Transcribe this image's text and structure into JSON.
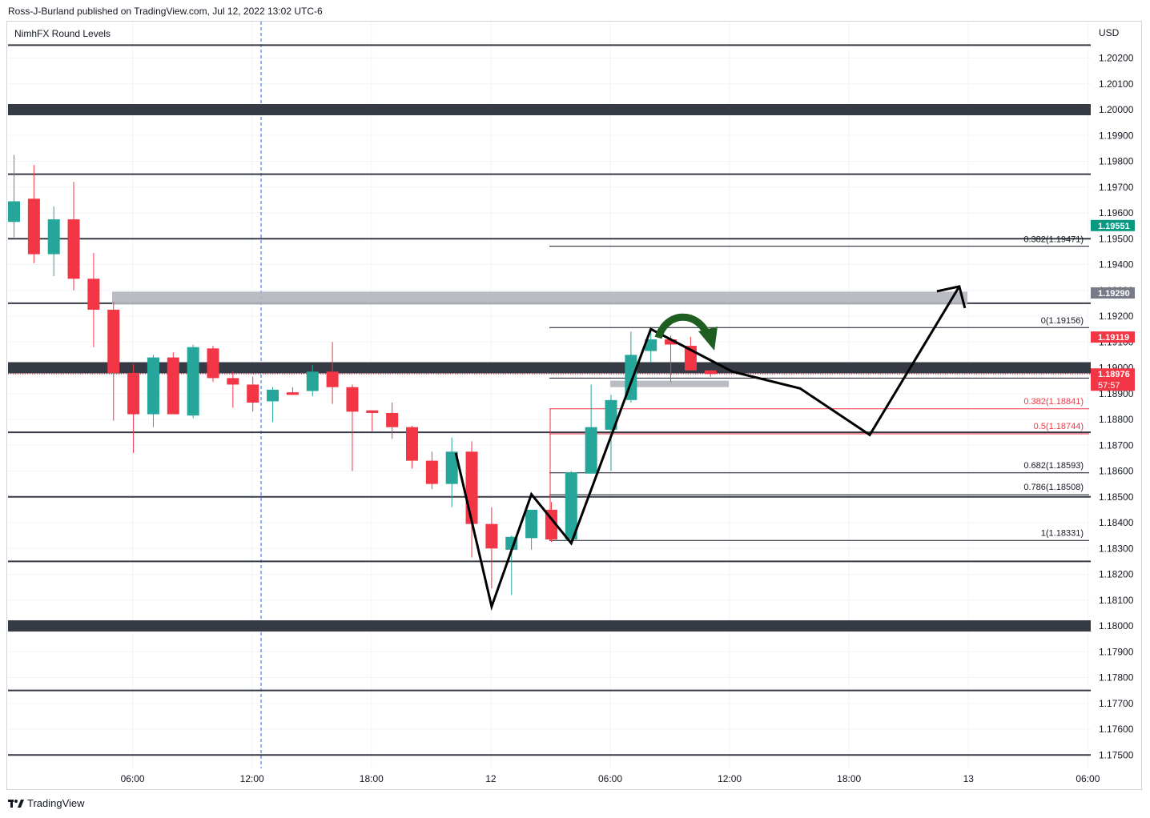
{
  "header": {
    "publisher": "Ross-J-Burland published on TradingView.com, Jul 12, 2022 13:02 UTC-6"
  },
  "indicator": {
    "name": "NimhFX Round Levels"
  },
  "currency": "USD",
  "footer": {
    "brand": "TradingView"
  },
  "colors": {
    "up": "#26a69a",
    "upAlt": "#089981",
    "down": "#f23645",
    "level": "#363a45",
    "zone": "#b2b5be",
    "arrow": "#1e5e20"
  },
  "chart_data": {
    "type": "candlestick",
    "ylim": [
      1.1747,
      1.203
    ],
    "price_ticks": [
      "1.20200",
      "1.20100",
      "1.20000",
      "1.19900",
      "1.19800",
      "1.19700",
      "1.19600",
      "1.19500",
      "1.19400",
      "1.19300",
      "1.19200",
      "1.19100",
      "1.19000",
      "1.18900",
      "1.18800",
      "1.18700",
      "1.18600",
      "1.18500",
      "1.18400",
      "1.18300",
      "1.18200",
      "1.18100",
      "1.18000",
      "1.17900",
      "1.17800",
      "1.17700",
      "1.17600",
      "1.17500"
    ],
    "time_ticks": [
      {
        "label": "06:00",
        "hour": 6
      },
      {
        "label": "12:00",
        "hour": 12
      },
      {
        "label": "18:00",
        "hour": 18
      },
      {
        "label": "12",
        "hour": 24
      },
      {
        "label": "06:00",
        "hour": 30
      },
      {
        "label": "12:00",
        "hour": 36
      },
      {
        "label": "18:00",
        "hour": 42
      },
      {
        "label": "13",
        "hour": 48
      },
      {
        "label": "06:00",
        "hour": 54
      }
    ],
    "candles": [
      {
        "t": 0,
        "o": 1.19565,
        "h": 1.19825,
        "l": 1.19505,
        "c": 1.19645
      },
      {
        "t": 1,
        "o": 1.19655,
        "h": 1.19785,
        "l": 1.19405,
        "c": 1.1944
      },
      {
        "t": 2,
        "o": 1.1944,
        "h": 1.19625,
        "l": 1.19355,
        "c": 1.19575
      },
      {
        "t": 3,
        "o": 1.19575,
        "h": 1.1972,
        "l": 1.193,
        "c": 1.19345
      },
      {
        "t": 4,
        "o": 1.19345,
        "h": 1.19445,
        "l": 1.1908,
        "c": 1.19225
      },
      {
        "t": 5,
        "o": 1.19225,
        "h": 1.19255,
        "l": 1.18795,
        "c": 1.1898
      },
      {
        "t": 6,
        "o": 1.1898,
        "h": 1.19015,
        "l": 1.1867,
        "c": 1.1882
      },
      {
        "t": 7,
        "o": 1.1882,
        "h": 1.1905,
        "l": 1.1877,
        "c": 1.1904
      },
      {
        "t": 8,
        "o": 1.1904,
        "h": 1.1906,
        "l": 1.18825,
        "c": 1.1882
      },
      {
        "t": 9,
        "o": 1.18815,
        "h": 1.1909,
        "l": 1.18805,
        "c": 1.1908
      },
      {
        "t": 10,
        "o": 1.19075,
        "h": 1.19085,
        "l": 1.18945,
        "c": 1.1896
      },
      {
        "t": 11,
        "o": 1.1896,
        "h": 1.18985,
        "l": 1.18845,
        "c": 1.18935
      },
      {
        "t": 12,
        "o": 1.18935,
        "h": 1.18965,
        "l": 1.1883,
        "c": 1.18865
      },
      {
        "t": 13,
        "o": 1.1887,
        "h": 1.18925,
        "l": 1.1879,
        "c": 1.18915
      },
      {
        "t": 14,
        "o": 1.18905,
        "h": 1.18925,
        "l": 1.18895,
        "c": 1.18895
      },
      {
        "t": 15,
        "o": 1.1891,
        "h": 1.1901,
        "l": 1.1889,
        "c": 1.18985
      },
      {
        "t": 16,
        "o": 1.18985,
        "h": 1.191,
        "l": 1.1886,
        "c": 1.18925
      },
      {
        "t": 17,
        "o": 1.18925,
        "h": 1.18935,
        "l": 1.186,
        "c": 1.1883
      },
      {
        "t": 18,
        "o": 1.18835,
        "h": 1.18835,
        "l": 1.18755,
        "c": 1.18825
      },
      {
        "t": 19,
        "o": 1.18825,
        "h": 1.18865,
        "l": 1.18725,
        "c": 1.1877
      },
      {
        "t": 20,
        "o": 1.1877,
        "h": 1.18775,
        "l": 1.1861,
        "c": 1.1864
      },
      {
        "t": 21,
        "o": 1.1864,
        "h": 1.18675,
        "l": 1.1853,
        "c": 1.1855
      },
      {
        "t": 22,
        "o": 1.1855,
        "h": 1.1873,
        "l": 1.1846,
        "c": 1.18675
      },
      {
        "t": 23,
        "o": 1.18675,
        "h": 1.18715,
        "l": 1.18265,
        "c": 1.18395
      },
      {
        "t": 24,
        "o": 1.18395,
        "h": 1.1846,
        "l": 1.18145,
        "c": 1.183
      },
      {
        "t": 25,
        "o": 1.18295,
        "h": 1.1835,
        "l": 1.1812,
        "c": 1.18345
      },
      {
        "t": 26,
        "o": 1.1834,
        "h": 1.18445,
        "l": 1.18295,
        "c": 1.1845
      },
      {
        "t": 27,
        "o": 1.1845,
        "h": 1.1848,
        "l": 1.18325,
        "c": 1.18335
      },
      {
        "t": 28,
        "o": 1.18335,
        "h": 1.186,
        "l": 1.1833,
        "c": 1.18595
      },
      {
        "t": 29,
        "o": 1.1859,
        "h": 1.18935,
        "l": 1.1859,
        "c": 1.1877
      },
      {
        "t": 30,
        "o": 1.1876,
        "h": 1.18895,
        "l": 1.186,
        "c": 1.18875
      },
      {
        "t": 31,
        "o": 1.18875,
        "h": 1.1914,
        "l": 1.18865,
        "c": 1.1905
      },
      {
        "t": 32,
        "o": 1.19065,
        "h": 1.19155,
        "l": 1.1902,
        "c": 1.1911
      },
      {
        "t": 33,
        "o": 1.1911,
        "h": 1.19125,
        "l": 1.18945,
        "c": 1.1909
      },
      {
        "t": 34,
        "o": 1.19085,
        "h": 1.1912,
        "l": 1.1899,
        "c": 1.1899
      },
      {
        "t": 35,
        "o": 1.1899,
        "h": 1.1899,
        "l": 1.18965,
        "c": 1.18976
      }
    ],
    "round_levels": [
      1.2025,
      1.2,
      1.1975,
      1.195,
      1.1925,
      1.19,
      1.1875,
      1.185,
      1.1825,
      1.18,
      1.1775,
      1.175
    ],
    "round_levels_major": [
      1.2,
      1.19,
      1.18
    ],
    "fib_upper": {
      "levels": [
        {
          "label": "0.382(1.19471)",
          "price": 1.19471
        },
        {
          "label": "0(1.19156)",
          "price": 1.19156
        }
      ]
    },
    "fib_lower": {
      "levels": [
        {
          "label": "0.382(1.18841)",
          "price": 1.18841,
          "color": "red"
        },
        {
          "label": "0.5(1.18744)",
          "price": 1.18744,
          "color": "red"
        },
        {
          "label": "0.682(1.18593)",
          "price": 1.18593,
          "color": "dark"
        },
        {
          "label": "0.786(1.18508)",
          "price": 1.18508,
          "color": "dark"
        },
        {
          "label": "1(1.18331)",
          "price": 1.18331,
          "color": "dark"
        }
      ]
    },
    "zones": [
      {
        "from": 1.19245,
        "to": 1.19295
      },
      {
        "from": 1.18925,
        "to": 1.1895
      }
    ],
    "pattern_path": [
      {
        "t": 22.2,
        "p": 1.1867
      },
      {
        "t": 24.0,
        "p": 1.18075
      },
      {
        "t": 26.0,
        "p": 1.1851
      },
      {
        "t": 28.0,
        "p": 1.1832
      },
      {
        "t": 32.0,
        "p": 1.1915
      },
      {
        "t": 36.1,
        "p": 1.18985
      },
      {
        "t": 39.5,
        "p": 1.1892
      },
      {
        "t": 43.0,
        "p": 1.1874
      },
      {
        "t": 47.5,
        "p": 1.19315
      }
    ],
    "price_tags": [
      {
        "label": "1.19551",
        "price": 1.19551,
        "color": "#089981"
      },
      {
        "label": "1.19290",
        "price": 1.1929,
        "color": "#787b86"
      },
      {
        "label": "1.19119",
        "price": 1.19119,
        "color": "#f23645"
      },
      {
        "label": "1.18976",
        "price": 1.18976,
        "color": "#f23645",
        "sub": "57:57"
      }
    ]
  }
}
